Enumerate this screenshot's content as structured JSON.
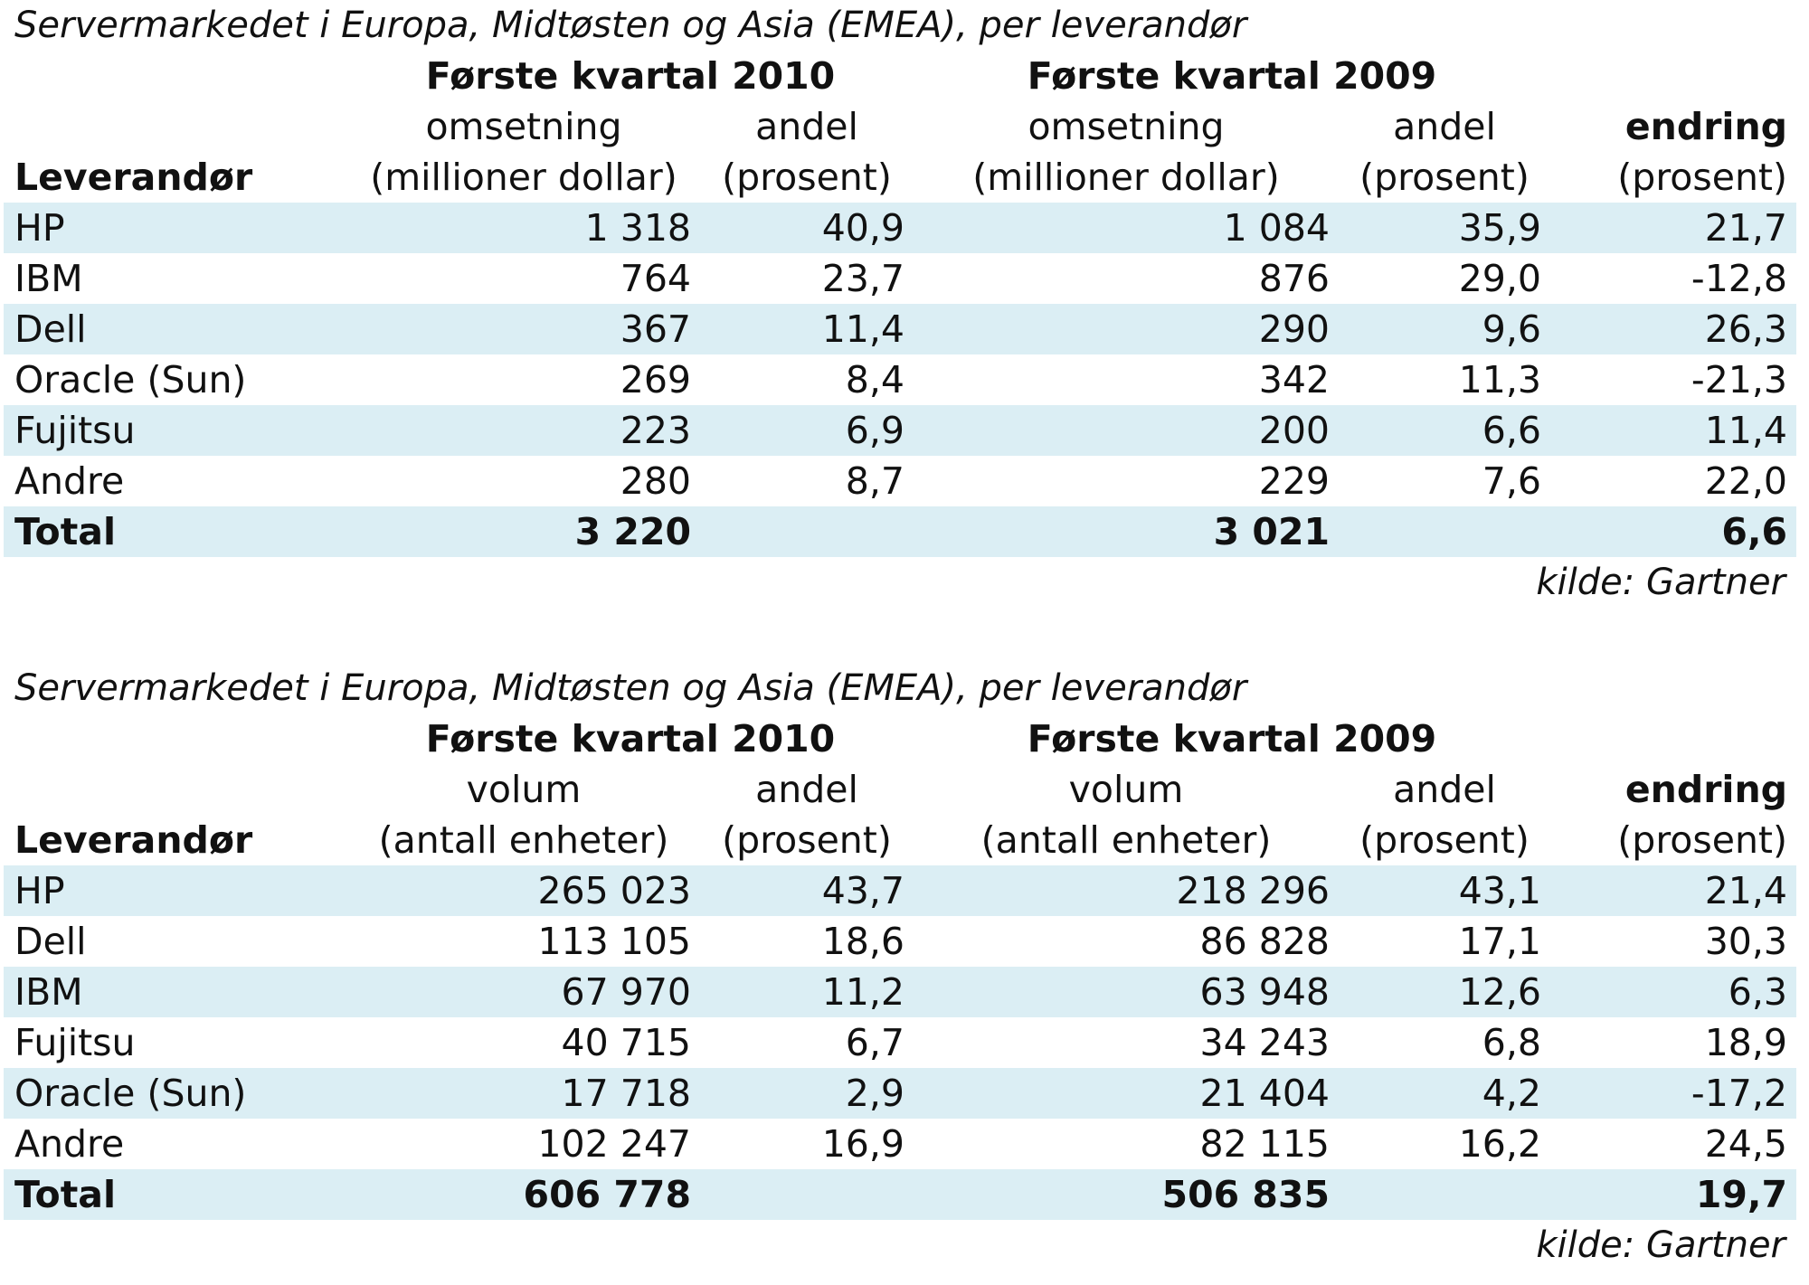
{
  "tables": [
    {
      "caption": "Servermarkedet i Europa, Midtøsten og Asia (EMEA), per leverandør",
      "period_2010": "Første kvartal 2010",
      "period_2009": "Første kvartal 2009",
      "h_vendor": "Leverandør",
      "h_value_top": "omsetning",
      "h_value_bottom": "(millioner dollar)",
      "h_share_top": "andel",
      "h_share_bottom": "(prosent)",
      "h_change_top": "endring",
      "h_change_bottom": "(prosent)",
      "rows": [
        {
          "vendor": "HP",
          "v2010": "1 318",
          "s2010": "40,9",
          "v2009": "1 084",
          "s2009": "35,9",
          "change": "21,7"
        },
        {
          "vendor": "IBM",
          "v2010": "764",
          "s2010": "23,7",
          "v2009": "876",
          "s2009": "29,0",
          "change": "-12,8"
        },
        {
          "vendor": "Dell",
          "v2010": "367",
          "s2010": "11,4",
          "v2009": "290",
          "s2009": "9,6",
          "change": "26,3"
        },
        {
          "vendor": "Oracle (Sun)",
          "v2010": "269",
          "s2010": "8,4",
          "v2009": "342",
          "s2009": "11,3",
          "change": "-21,3"
        },
        {
          "vendor": "Fujitsu",
          "v2010": "223",
          "s2010": "6,9",
          "v2009": "200",
          "s2009": "6,6",
          "change": "11,4"
        },
        {
          "vendor": "Andre",
          "v2010": "280",
          "s2010": "8,7",
          "v2009": "229",
          "s2009": "7,6",
          "change": "22,0"
        }
      ],
      "total": {
        "label": "Total",
        "v2010": "3 220",
        "v2009": "3 021",
        "change": "6,6"
      },
      "source": "kilde: Gartner"
    },
    {
      "caption": "Servermarkedet i Europa, Midtøsten og Asia (EMEA), per leverandør",
      "period_2010": "Første kvartal 2010",
      "period_2009": "Første kvartal 2009",
      "h_vendor": "Leverandør",
      "h_value_top": "volum",
      "h_value_bottom": "(antall enheter)",
      "h_share_top": "andel",
      "h_share_bottom": "(prosent)",
      "h_change_top": "endring",
      "h_change_bottom": "(prosent)",
      "rows": [
        {
          "vendor": "HP",
          "v2010": "265 023",
          "s2010": "43,7",
          "v2009": "218 296",
          "s2009": "43,1",
          "change": "21,4"
        },
        {
          "vendor": "Dell",
          "v2010": "113 105",
          "s2010": "18,6",
          "v2009": "86 828",
          "s2009": "17,1",
          "change": "30,3"
        },
        {
          "vendor": "IBM",
          "v2010": "67 970",
          "s2010": "11,2",
          "v2009": "63 948",
          "s2009": "12,6",
          "change": "6,3"
        },
        {
          "vendor": "Fujitsu",
          "v2010": "40 715",
          "s2010": "6,7",
          "v2009": "34 243",
          "s2009": "6,8",
          "change": "18,9"
        },
        {
          "vendor": "Oracle (Sun)",
          "v2010": "17 718",
          "s2010": "2,9",
          "v2009": "21 404",
          "s2009": "4,2",
          "change": "-17,2"
        },
        {
          "vendor": "Andre",
          "v2010": "102 247",
          "s2010": "16,9",
          "v2009": "82 115",
          "s2009": "16,2",
          "change": "24,5"
        }
      ],
      "total": {
        "label": "Total",
        "v2010": "606 778",
        "v2009": "506 835",
        "change": "19,7"
      },
      "source": "kilde: Gartner"
    }
  ]
}
